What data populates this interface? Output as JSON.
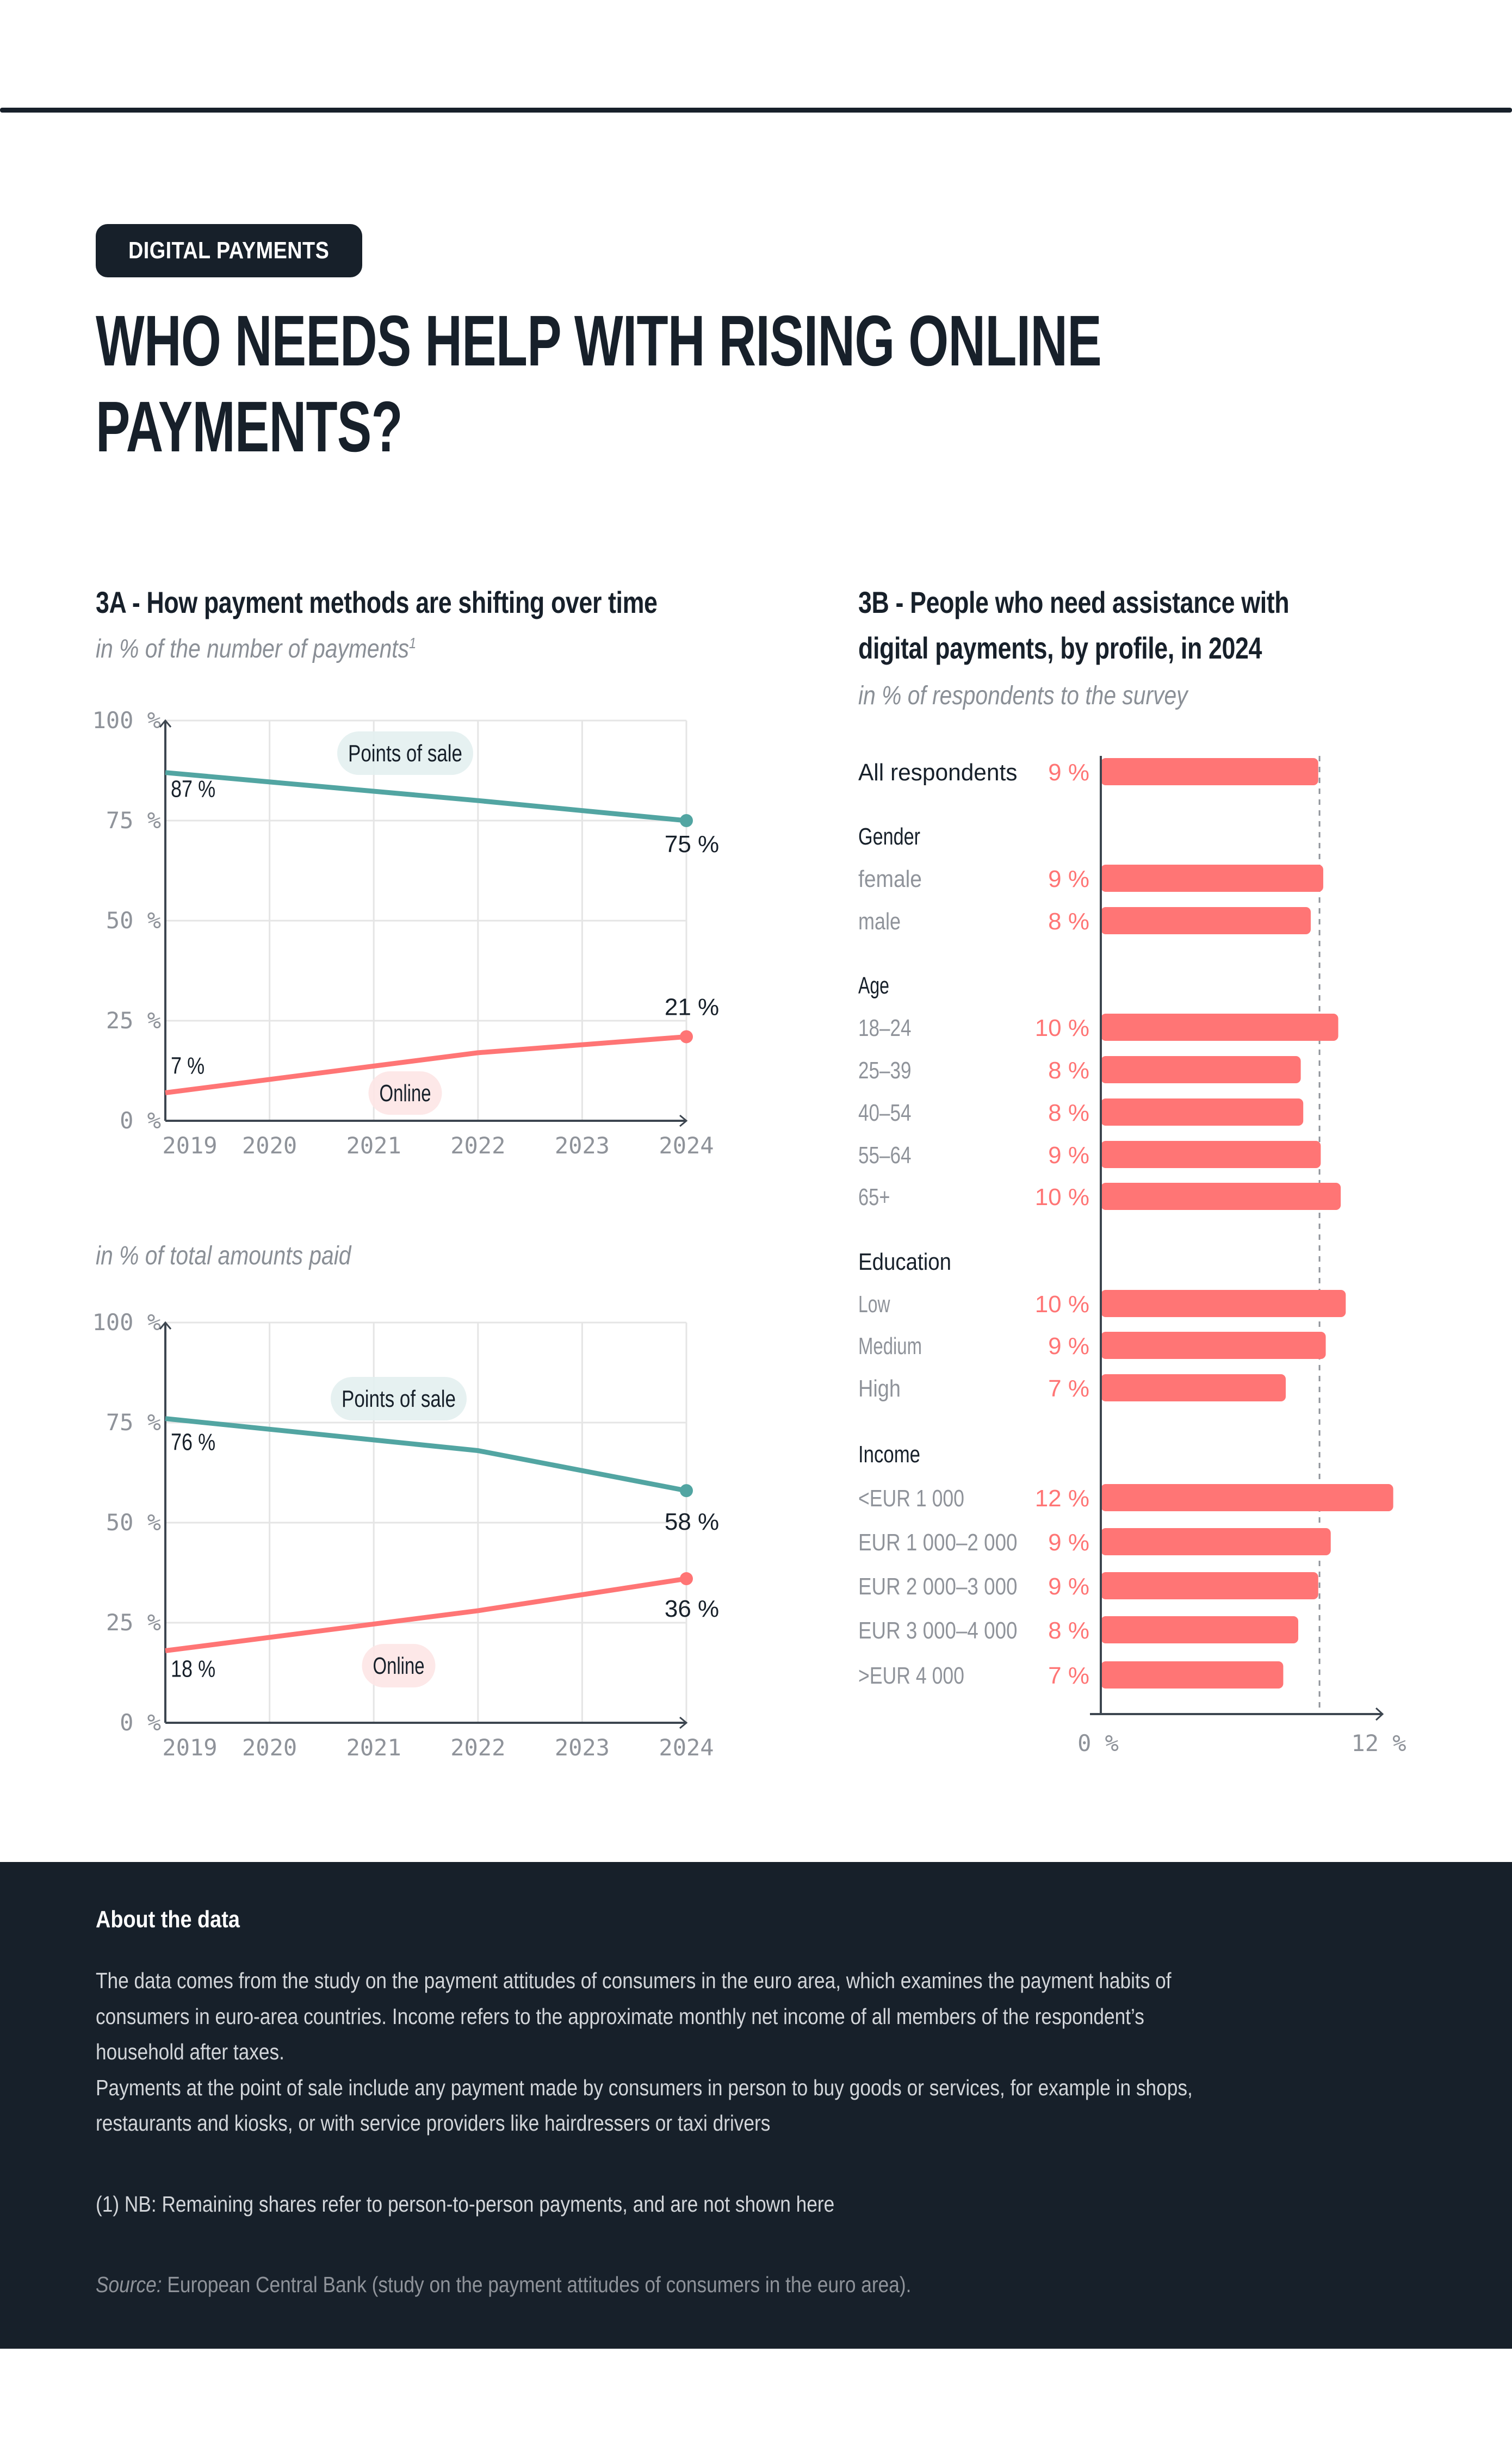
{
  "header": {
    "category_badge": "DIGITAL PAYMENTS",
    "title_line1": "WHO NEEDS HELP WITH RISING ONLINE",
    "title_line2": "PAYMENTS?"
  },
  "colors": {
    "dark": "#17202a",
    "points_of_sale": "#52a5a2",
    "online": "#ff7575",
    "pos_label_bg": "#e3f0ef",
    "online_label_bg": "#fde6e6",
    "muted_text": "#8f939a",
    "grid": "#e5e5e5"
  },
  "panel_3a": {
    "title": "3A - How payment methods are shifting over time",
    "subtitle_number": "in % of the number of payments",
    "subtitle_number_footnote": "1",
    "subtitle_amount": "in % of total amounts paid"
  },
  "panel_3b": {
    "title_line1": "3B - People who need assistance with",
    "title_line2": "digital payments, by profile, in 2024",
    "subtitle": "in % of respondents to the survey"
  },
  "chart_data": [
    {
      "id": "3a-number",
      "type": "line",
      "title": "in % of the number of payments",
      "x": [
        2019,
        2022,
        2024
      ],
      "x_ticks": [
        "2019",
        "2020",
        "2021",
        "2022",
        "2023",
        "2024"
      ],
      "y_ticks": [
        "0 %",
        "25 %",
        "50 %",
        "75 %",
        "100 %"
      ],
      "ylim": [
        0,
        100
      ],
      "xlim": [
        2019,
        2024
      ],
      "grid": true,
      "series": [
        {
          "name": "Points of sale",
          "key": "pos",
          "values": [
            87,
            80,
            75
          ],
          "start_label": "87 %",
          "end_label": "75 %"
        },
        {
          "name": "Online",
          "key": "online",
          "values": [
            7,
            17,
            21
          ],
          "start_label": "7 %",
          "end_label": "21 %"
        }
      ]
    },
    {
      "id": "3a-amount",
      "type": "line",
      "title": "in % of total amounts paid",
      "x": [
        2019,
        2022,
        2024
      ],
      "x_ticks": [
        "2019",
        "2020",
        "2021",
        "2022",
        "2023",
        "2024"
      ],
      "y_ticks": [
        "0 %",
        "25 %",
        "50 %",
        "75 %",
        "100 %"
      ],
      "ylim": [
        0,
        100
      ],
      "xlim": [
        2019,
        2024
      ],
      "grid": true,
      "series": [
        {
          "name": "Points of sale",
          "key": "pos",
          "values": [
            76,
            68,
            58
          ],
          "start_label": "76 %",
          "end_label": "58 %"
        },
        {
          "name": "Online",
          "key": "online",
          "values": [
            18,
            28,
            36
          ],
          "start_label": "18 %",
          "end_label": "36 %"
        }
      ]
    },
    {
      "id": "3b",
      "type": "bar",
      "orientation": "horizontal",
      "title": "People who need assistance with digital payments, by profile, in 2024",
      "xlim": [
        0,
        12
      ],
      "x_ticks": [
        "0 %",
        "12 %"
      ],
      "reference_line": {
        "label": "All respondents",
        "value": 8.75,
        "style": "dashed"
      },
      "groups": [
        {
          "name": "",
          "items": [
            {
              "label": "All respondents",
              "value": 8.7,
              "display": "9 %",
              "primary": true
            }
          ]
        },
        {
          "name": "Gender",
          "items": [
            {
              "label": "female",
              "value": 8.9,
              "display": "9 %"
            },
            {
              "label": "male",
              "value": 8.4,
              "display": "8 %"
            }
          ]
        },
        {
          "name": "Age",
          "items": [
            {
              "label": "18–24",
              "value": 9.5,
              "display": "10 %"
            },
            {
              "label": "25–39",
              "value": 8.0,
              "display": "8 %"
            },
            {
              "label": "40–54",
              "value": 8.1,
              "display": "8 %"
            },
            {
              "label": "55–64",
              "value": 8.8,
              "display": "9 %"
            },
            {
              "label": "65+",
              "value": 9.6,
              "display": "10 %"
            }
          ]
        },
        {
          "name": "Education",
          "items": [
            {
              "label": "Low",
              "value": 9.8,
              "display": "10 %"
            },
            {
              "label": "Medium",
              "value": 9.0,
              "display": "9 %"
            },
            {
              "label": "High",
              "value": 7.4,
              "display": "7 %"
            }
          ]
        },
        {
          "name": "Income",
          "items": [
            {
              "label": "<EUR 1 000",
              "value": 11.7,
              "display": "12 %"
            },
            {
              "label": "EUR 1 000–2 000",
              "value": 9.2,
              "display": "9 %"
            },
            {
              "label": "EUR 2 000–3 000",
              "value": 8.7,
              "display": "9 %"
            },
            {
              "label": "EUR 3 000–4 000",
              "value": 7.9,
              "display": "8 %"
            },
            {
              "label": ">EUR 4 000",
              "value": 7.3,
              "display": "7 %"
            }
          ]
        }
      ]
    }
  ],
  "footer": {
    "heading": "About the data",
    "paragraph1_line1": "The data comes from the study on the payment attitudes of consumers in the euro area, which examines the payment habits of",
    "paragraph1_line2": "consumers in euro-area countries. Income refers to the approximate monthly net income of all members of the respondent’s",
    "paragraph1_line3": "household after taxes.",
    "paragraph2_line1": "Payments at the point of sale include any payment made by consumers in person to buy goods or services, for example in shops,",
    "paragraph2_line2": "restaurants and kiosks, or with service providers like hairdressers or taxi drivers",
    "note": "(1) NB: Remaining shares refer to person-to-person payments, and are not shown here",
    "source_label": "Source:",
    "source_text": " European Central Bank (study on the payment attitudes of consumers in the euro area)."
  }
}
